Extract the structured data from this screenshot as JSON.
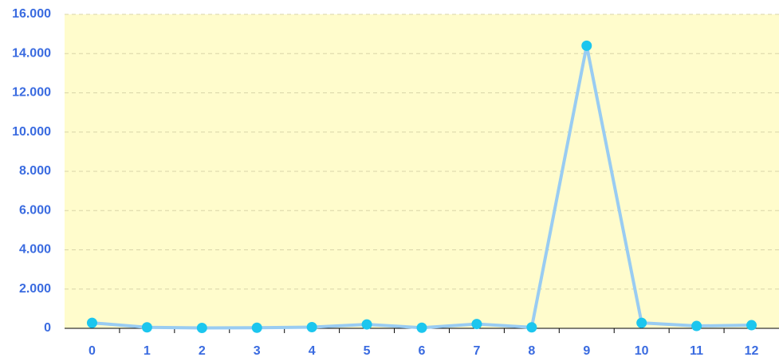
{
  "chart_data": {
    "type": "line",
    "categories": [
      "0",
      "1",
      "2",
      "3",
      "4",
      "5",
      "6",
      "7",
      "8",
      "9",
      "10",
      "11",
      "12"
    ],
    "series": [
      {
        "color": "#99ccf2",
        "marker_color": "#1cc6ee",
        "values": [
          280,
          50,
          20,
          30,
          60,
          200,
          30,
          220,
          50,
          14400,
          280,
          120,
          160
        ]
      }
    ],
    "ylim": [
      0,
      16000
    ],
    "yticks": [
      0,
      {
        "value": 2000,
        "label": "2.000"
      },
      {
        "value": 4000,
        "label": "4.000"
      },
      {
        "value": 6000,
        "label": "6.000"
      },
      {
        "value": 8000,
        "label": "8.000"
      },
      {
        "value": 10000,
        "label": "10.000"
      },
      {
        "value": 12000,
        "label": "12.000"
      },
      {
        "value": 14000,
        "label": "14.000"
      },
      {
        "value": 16000,
        "label": "16.000"
      }
    ],
    "grid": true,
    "background": "#fffccc"
  }
}
